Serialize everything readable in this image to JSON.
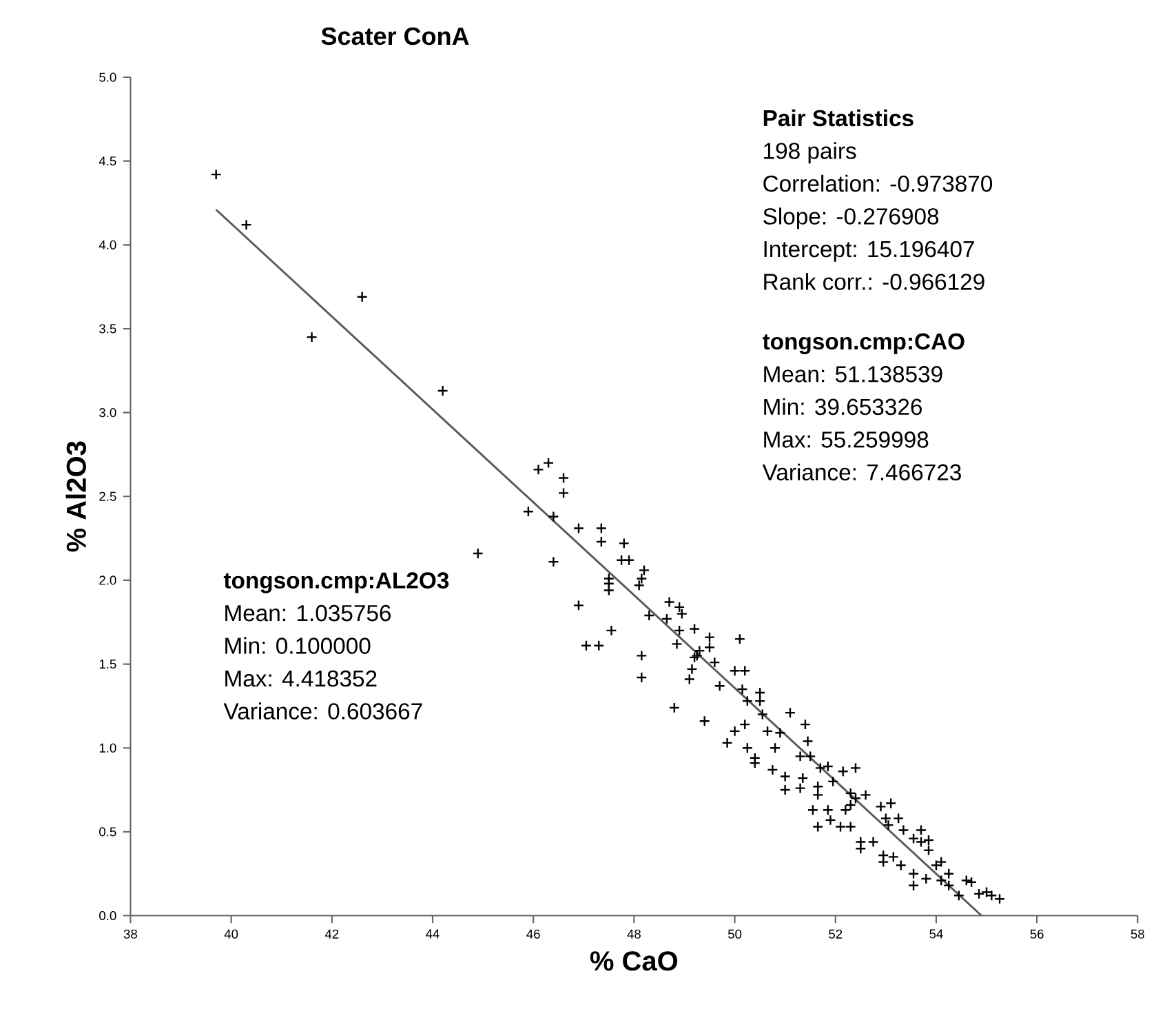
{
  "chart_data": {
    "type": "scatter",
    "title": "Scater ConA",
    "xlabel": "% CaO",
    "ylabel": "% Al2O3",
    "xlim": [
      38,
      58
    ],
    "xticks": [
      38,
      40,
      42,
      44,
      46,
      48,
      50,
      52,
      54,
      56,
      58
    ],
    "ylim": [
      0,
      5
    ],
    "yticks": [
      {
        "value": 0,
        "label": "0.0"
      },
      {
        "value": 0.5,
        "label": "0.5"
      },
      {
        "value": 1,
        "label": "1.0"
      },
      {
        "value": 1.5,
        "label": "1.5"
      },
      {
        "value": 2,
        "label": "2.0"
      },
      {
        "value": 2.5,
        "label": "2.5"
      },
      {
        "value": 3,
        "label": "3.0"
      },
      {
        "value": 3.5,
        "label": "3.5"
      },
      {
        "value": 4,
        "label": "4.0"
      },
      {
        "value": 4.5,
        "label": "4.5"
      },
      {
        "value": 5,
        "label": "5.0"
      }
    ],
    "series": [
      {
        "marker": "cross",
        "color": "#000000",
        "x": [
          39.7,
          40.3,
          41.6,
          42.6,
          44.2,
          44.9,
          46.1,
          46.3,
          46.6,
          46.6,
          45.9,
          46.4,
          46.9,
          47.35,
          47.35,
          47.8,
          46.4,
          47.75,
          47.9,
          48.2,
          48.15,
          48.1,
          47.5,
          47.5,
          47.5,
          46.9,
          48.3,
          48.7,
          48.9,
          48.95,
          48.65,
          48.9,
          49.2,
          47.55,
          47.05,
          47.3,
          48.85,
          48.15,
          48.15,
          50.1,
          49.5,
          49.5,
          49.25,
          49.6,
          49.15,
          49.1,
          48.8,
          50.0,
          50.2,
          49.7,
          50.15,
          50.5,
          49.4,
          49.85,
          50.0,
          50.2,
          50.25,
          50.4,
          50.4,
          50.75,
          50.8,
          50.55,
          50.65,
          50.9,
          51.1,
          51.4,
          51.45,
          51.3,
          51.5,
          51.7,
          51.85,
          51.0,
          51.0,
          51.3,
          51.35,
          51.65,
          51.65,
          51.65,
          51.55,
          51.85,
          51.9,
          52.1,
          52.2,
          52.3,
          51.95,
          52.15,
          52.4,
          52.3,
          52.4,
          52.6,
          52.3,
          52.5,
          52.5,
          52.75,
          52.9,
          53.1,
          53.0,
          53.05,
          52.95,
          52.95,
          53.15,
          53.3,
          53.25,
          53.35,
          53.55,
          53.7,
          53.7,
          53.85,
          53.85,
          53.55,
          53.55,
          53.8,
          54.0,
          54.1,
          54.1,
          54.25,
          54.25,
          54.45,
          54.6,
          54.7,
          54.85,
          55.0,
          55.1,
          55.26,
          49.2,
          49.3,
          50.25,
          50.5
        ],
        "values": [
          4.42,
          4.12,
          3.45,
          3.69,
          3.13,
          2.16,
          2.66,
          2.7,
          2.61,
          2.52,
          2.41,
          2.38,
          2.31,
          2.31,
          2.23,
          2.22,
          2.11,
          2.12,
          2.12,
          2.06,
          2.01,
          1.97,
          2.01,
          1.98,
          1.94,
          1.85,
          1.79,
          1.87,
          1.84,
          1.8,
          1.77,
          1.7,
          1.71,
          1.7,
          1.61,
          1.61,
          1.62,
          1.55,
          1.42,
          1.65,
          1.66,
          1.6,
          1.55,
          1.51,
          1.47,
          1.41,
          1.24,
          1.46,
          1.46,
          1.37,
          1.35,
          1.33,
          1.16,
          1.03,
          1.1,
          1.14,
          1.0,
          0.94,
          0.91,
          0.87,
          1.0,
          1.2,
          1.1,
          1.09,
          1.21,
          1.14,
          1.04,
          0.95,
          0.95,
          0.88,
          0.89,
          0.83,
          0.75,
          0.76,
          0.82,
          0.77,
          0.72,
          0.53,
          0.63,
          0.63,
          0.57,
          0.53,
          0.63,
          0.53,
          0.8,
          0.86,
          0.88,
          0.73,
          0.7,
          0.72,
          0.66,
          0.44,
          0.4,
          0.44,
          0.65,
          0.67,
          0.58,
          0.54,
          0.36,
          0.32,
          0.35,
          0.3,
          0.58,
          0.51,
          0.46,
          0.51,
          0.44,
          0.45,
          0.39,
          0.25,
          0.18,
          0.22,
          0.3,
          0.32,
          0.21,
          0.25,
          0.18,
          0.12,
          0.21,
          0.2,
          0.13,
          0.14,
          0.12,
          0.1,
          1.54,
          1.58,
          1.28,
          1.28
        ]
      },
      {
        "type": "line",
        "color": "#595959",
        "x": [
          39.7,
          54.9
        ],
        "values": [
          4.21,
          0.0
        ]
      }
    ],
    "annotations": [
      "Pair Statistics",
      "198 pairs",
      "Correlation: -0.973870",
      "Slope: -0.276908",
      "Intercept: 15.196407",
      "Rank corr.: -0.966129",
      "tongson.cmp:CAO",
      "Mean: 51.138539",
      "Min: 39.653326",
      "Max: 55.259998",
      "Variance: 7.466723",
      "tongson.cmp:AL2O3",
      "Mean: 1.035756",
      "Min: 0.100000",
      "Max: 4.418352",
      "Variance: 0.603667"
    ]
  }
}
